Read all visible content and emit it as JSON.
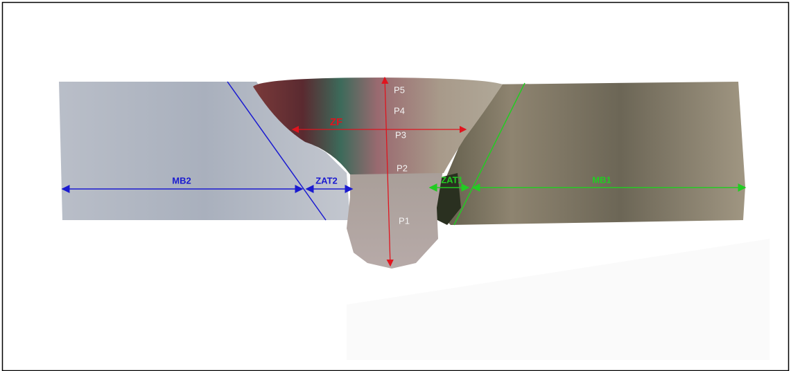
{
  "annotations": {
    "mb2": "MB2",
    "zat2": "ZAT2",
    "zf": "ZF",
    "p5": "P5",
    "p4": "P4",
    "p3": "P3",
    "p2": "P2",
    "p1": "P1",
    "zat1": "ZAT1",
    "mb1": "MB1"
  }
}
